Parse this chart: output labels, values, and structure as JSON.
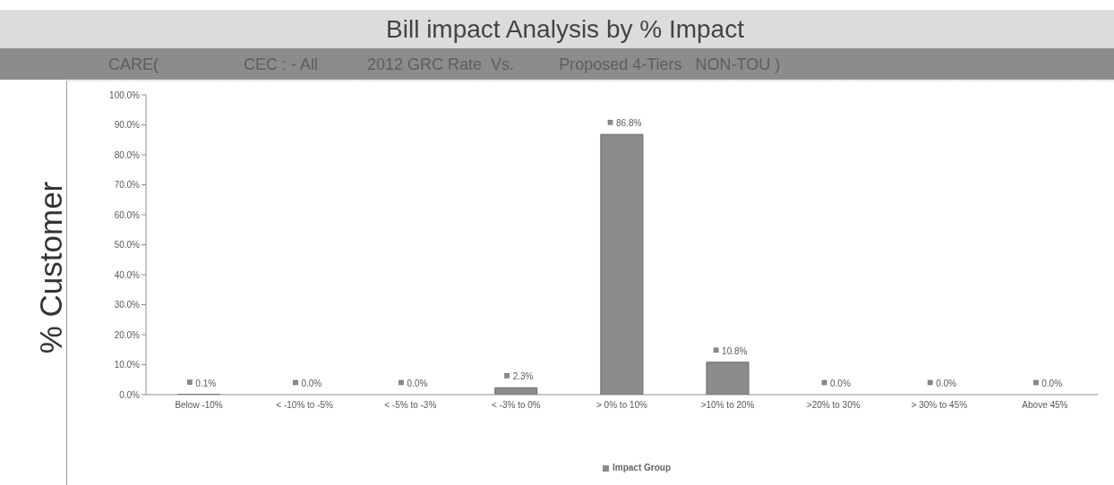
{
  "chart_data": {
    "type": "bar",
    "title": "Bill impact Analysis by % Impact",
    "subtitle": "CARE(                   CEC : - All           2012 GRC Rate  Vs.          Proposed 4-Tiers   NON-TOU )",
    "ylabel": "% Customer",
    "categories": [
      "Below -10%",
      "< -10% to -5%",
      "< -5% to -3%",
      "< -3% to 0%",
      "> 0% to 10%",
      ">10% to 20%",
      ">20% to 30%",
      "> 30% to 45%",
      "Above 45%"
    ],
    "series": [
      {
        "name": "Impact Group",
        "color": "#8c8c8c",
        "values": [
          0.1,
          0.0,
          0.0,
          2.3,
          86.8,
          10.8,
          0.0,
          0.0,
          0.0
        ],
        "value_labels": [
          "0.1%",
          "0.0%",
          "0.0%",
          "2.3%",
          "86.8%",
          "10.8%",
          "0.0%",
          "0.0%",
          "0.0%"
        ]
      }
    ],
    "ylim": [
      0,
      100
    ],
    "yticks": [
      {
        "value": 0,
        "label": "0.0%"
      },
      {
        "value": 10,
        "label": "10.0%"
      },
      {
        "value": 20,
        "label": "20.0%"
      },
      {
        "value": 30,
        "label": "30.0%"
      },
      {
        "value": 40,
        "label": "40.0%"
      },
      {
        "value": 50,
        "label": "50.0%"
      },
      {
        "value": 60,
        "label": "60.0%"
      },
      {
        "value": 70,
        "label": "70.0%"
      },
      {
        "value": 80,
        "label": "80.0%"
      },
      {
        "value": 90,
        "label": "90.0%"
      },
      {
        "value": 100,
        "label": "100.0%"
      }
    ],
    "legend": "bottom"
  }
}
